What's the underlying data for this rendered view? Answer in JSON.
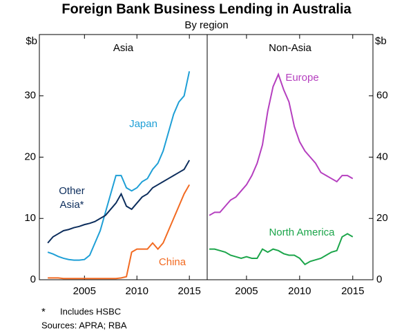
{
  "title": "Foreign Bank Business Lending in Australia",
  "subtitle": "By region",
  "chart_data": [
    {
      "type": "line",
      "title": "Asia",
      "ylabel": "$b",
      "axis_side": "left",
      "x": [
        2001.5,
        2002,
        2002.5,
        2003,
        2003.5,
        2004,
        2004.5,
        2005,
        2005.5,
        2006,
        2006.5,
        2007,
        2007.5,
        2008,
        2008.5,
        2009,
        2009.5,
        2010,
        2010.5,
        2011,
        2011.5,
        2012,
        2012.5,
        2013,
        2013.5,
        2014,
        2014.5,
        2015
      ],
      "xlim": [
        2000.7,
        2016.7
      ],
      "xticks": [
        2005,
        2010,
        2015
      ],
      "ylim": [
        0,
        40
      ],
      "yticks": [
        0,
        10,
        20,
        30
      ],
      "series": [
        {
          "name": "Japan",
          "color": "#1e9fd6",
          "values": [
            4.5,
            4.2,
            3.8,
            3.5,
            3.3,
            3.2,
            3.2,
            3.3,
            4.0,
            6,
            8,
            11,
            14,
            17,
            17,
            15,
            14.5,
            15,
            16,
            16.5,
            18,
            19,
            21,
            24,
            27,
            29,
            30,
            34
          ]
        },
        {
          "name": "Other Asia*",
          "color": "#0c2d5c",
          "values": [
            6,
            7,
            7.5,
            8,
            8.2,
            8.5,
            8.7,
            9,
            9.2,
            9.5,
            10,
            10.5,
            11.5,
            12.5,
            14,
            12,
            11.5,
            12.5,
            13.5,
            14,
            15,
            15.5,
            16,
            16.5,
            17,
            17.5,
            18,
            19.5
          ]
        },
        {
          "name": "China",
          "color": "#f26a21",
          "values": [
            0.3,
            0.3,
            0.3,
            0.2,
            0.2,
            0.2,
            0.2,
            0.2,
            0.2,
            0.2,
            0.2,
            0.2,
            0.2,
            0.2,
            0.3,
            0.5,
            4.5,
            5,
            5,
            5,
            6,
            5,
            6,
            8,
            10,
            12,
            14,
            15.5
          ]
        }
      ]
    },
    {
      "type": "line",
      "title": "Non-Asia",
      "ylabel": "$b",
      "axis_side": "right",
      "x": [
        2001.5,
        2002,
        2002.5,
        2003,
        2003.5,
        2004,
        2004.5,
        2005,
        2005.5,
        2006,
        2006.5,
        2007,
        2007.5,
        2008,
        2008.5,
        2009,
        2009.5,
        2010,
        2010.5,
        2011,
        2011.5,
        2012,
        2012.5,
        2013,
        2013.5,
        2014,
        2014.5,
        2015
      ],
      "xlim": [
        2001.3,
        2016.9
      ],
      "xticks": [
        2005,
        2010,
        2015
      ],
      "ylim": [
        0,
        80
      ],
      "yticks": [
        0,
        20,
        40,
        60
      ],
      "series": [
        {
          "name": "Europe",
          "color": "#b53fbf",
          "values": [
            21,
            22,
            22,
            24,
            26,
            27,
            29,
            31,
            34,
            38,
            44,
            55,
            63,
            67,
            62,
            58,
            50,
            45,
            42,
            40,
            38,
            35,
            34,
            33,
            32,
            34,
            34,
            33
          ]
        },
        {
          "name": "North America",
          "color": "#1ba54a",
          "values": [
            10,
            10,
            9.5,
            9,
            8,
            7.5,
            7,
            7.5,
            7,
            7,
            10,
            9,
            10,
            9.5,
            8.5,
            8,
            8,
            7,
            5,
            6,
            6.5,
            7,
            8,
            9,
            9.5,
            14,
            15,
            14
          ]
        }
      ]
    }
  ],
  "footnote": {
    "marker": "*",
    "text": "Includes HSBC"
  },
  "sources": "Sources: APRA; RBA"
}
